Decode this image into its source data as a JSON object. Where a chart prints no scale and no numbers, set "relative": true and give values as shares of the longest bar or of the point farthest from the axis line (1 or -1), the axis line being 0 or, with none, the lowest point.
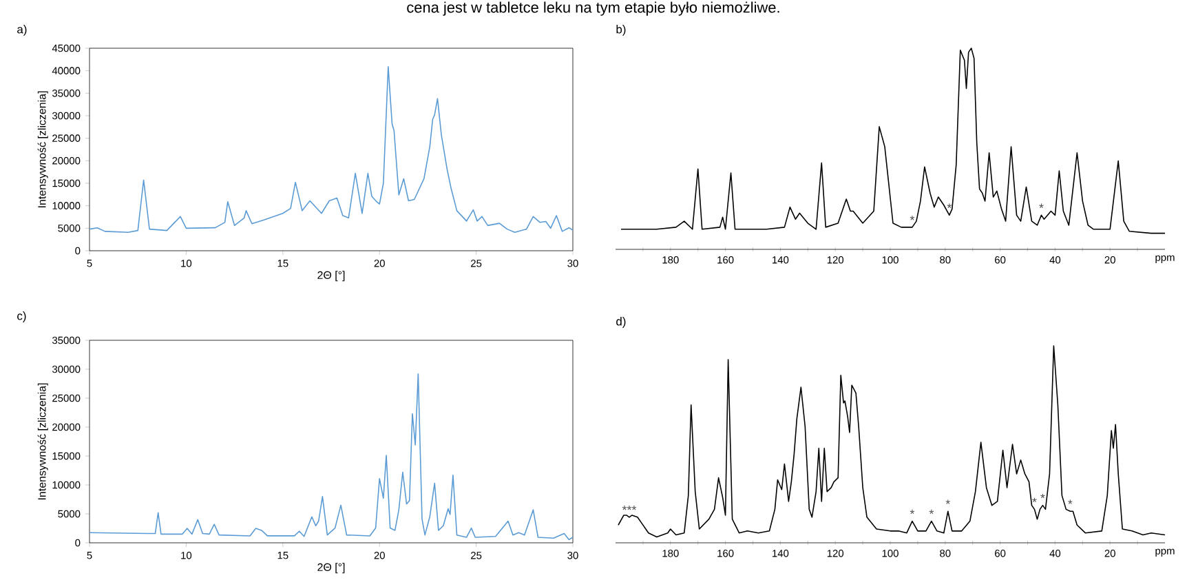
{
  "chart_data": [
    {
      "type": "line",
      "title": "a)",
      "annotations": [
        "cena jest w tabletce leku na tym etapie było niemożliwe."
      ],
      "xlabel": "2Θ [°]",
      "ylabel": "Intensywność [zliczenia]",
      "xlim": [
        5,
        30
      ],
      "ylim": [
        0,
        45000
      ],
      "xticks": [
        5,
        10,
        15,
        20,
        25,
        30
      ],
      "yticks": [
        0,
        5000,
        10000,
        15000,
        20000,
        25000,
        30000,
        35000,
        40000,
        45000
      ],
      "x": [
        5,
        5.4,
        5.8,
        7,
        7.5,
        7.8,
        8.1,
        9,
        9.7,
        10,
        11.5,
        12,
        12.15,
        12.5,
        13,
        13.1,
        13.4,
        14,
        15,
        15.4,
        15.65,
        16,
        16.4,
        17,
        17.4,
        17.8,
        18.1,
        18.4,
        18.75,
        19.1,
        19.4,
        19.6,
        19.85,
        20,
        20.2,
        20.45,
        20.65,
        20.75,
        21.0,
        21.25,
        21.5,
        21.8,
        22.3,
        22.6,
        22.75,
        22.85,
        23.0,
        23.2,
        23.5,
        23.7,
        24.0,
        24.5,
        24.85,
        25.05,
        25.3,
        25.6,
        26.2,
        26.6,
        27.0,
        27.6,
        27.95,
        28.3,
        28.6,
        28.85,
        29.15,
        29.45,
        29.8,
        30
      ],
      "series": [
        {
          "color": "#5b9bd5",
          "values": [
            4800,
            5100,
            4300,
            4100,
            4500,
            15700,
            4800,
            4500,
            7600,
            5000,
            5100,
            6300,
            10900,
            5600,
            7300,
            8900,
            6000,
            6800,
            8300,
            9400,
            15200,
            8900,
            11100,
            8300,
            11100,
            11700,
            7800,
            7300,
            17200,
            8300,
            17200,
            12100,
            10900,
            10400,
            15000,
            40900,
            28200,
            26700,
            12400,
            16000,
            11100,
            11400,
            16000,
            23100,
            29200,
            30200,
            33800,
            25700,
            18000,
            13900,
            8900,
            6600,
            9100,
            6600,
            7600,
            5600,
            6100,
            4800,
            4100,
            4800,
            7600,
            6300,
            6500,
            5000,
            7800,
            4300,
            5100,
            4600
          ]
        }
      ]
    },
    {
      "type": "line",
      "title": "b)",
      "xlabel": "ppm",
      "relative": true,
      "tick_labels": "x",
      "xlim": [
        200,
        0
      ],
      "xticks": [
        {
          "value": 190,
          "label": null
        },
        180,
        {
          "value": 170,
          "label": null
        },
        160,
        {
          "value": 150,
          "label": null
        },
        140,
        {
          "value": 130,
          "label": null
        },
        120,
        {
          "value": 110,
          "label": null
        },
        100,
        {
          "value": 90,
          "label": null
        },
        80,
        {
          "value": 70,
          "label": null
        },
        60,
        {
          "value": 50,
          "label": null
        },
        40,
        {
          "value": 30,
          "label": null
        },
        20,
        {
          "value": 10,
          "label": null
        }
      ],
      "annotations": [
        {
          "text": "*",
          "x": 92,
          "y": 0.11
        },
        {
          "text": "*",
          "x": 78.5,
          "y": 0.17
        },
        {
          "text": "*",
          "x": 45,
          "y": 0.17
        }
      ],
      "x": [
        198,
        185,
        178,
        175,
        172,
        170,
        168.5,
        162,
        161,
        160,
        158,
        156.5,
        145,
        138.5,
        136.5,
        134.5,
        133,
        130,
        127,
        125,
        123.5,
        119,
        116,
        114.5,
        113.5,
        110,
        106,
        104,
        102,
        99,
        96,
        92,
        90.5,
        89,
        87.5,
        85.5,
        84,
        82.5,
        80.5,
        78.5,
        77.5,
        76,
        74.5,
        73,
        72.3,
        71.5,
        70.5,
        69.5,
        68.5,
        67.5,
        66.5,
        65.5,
        64,
        62.5,
        61.2,
        59.5,
        58,
        56,
        54,
        52.5,
        50.5,
        48.5,
        46.5,
        45,
        44,
        41.5,
        40,
        38.5,
        37,
        35,
        32,
        30,
        28,
        26,
        23.5,
        20,
        17,
        15,
        13,
        5,
        0
      ],
      "series": [
        {
          "color": "#000000",
          "values": [
            0.1,
            0.1,
            0.11,
            0.14,
            0.1,
            0.4,
            0.1,
            0.11,
            0.16,
            0.1,
            0.38,
            0.1,
            0.1,
            0.11,
            0.21,
            0.15,
            0.18,
            0.13,
            0.1,
            0.43,
            0.11,
            0.13,
            0.25,
            0.19,
            0.19,
            0.13,
            0.19,
            0.61,
            0.51,
            0.13,
            0.11,
            0.11,
            0.14,
            0.24,
            0.41,
            0.28,
            0.21,
            0.26,
            0.22,
            0.17,
            0.2,
            0.42,
            0.99,
            0.94,
            0.8,
            0.98,
            1.0,
            0.95,
            0.53,
            0.3,
            0.28,
            0.24,
            0.48,
            0.26,
            0.29,
            0.2,
            0.14,
            0.51,
            0.17,
            0.14,
            0.31,
            0.14,
            0.12,
            0.17,
            0.15,
            0.19,
            0.17,
            0.39,
            0.19,
            0.12,
            0.48,
            0.24,
            0.12,
            0.1,
            0.1,
            0.1,
            0.44,
            0.14,
            0.09,
            0.08,
            0.08
          ]
        }
      ]
    },
    {
      "type": "line",
      "title": "c)",
      "xlabel": "2Θ [°]",
      "ylabel": "Intensywność [zliczenia]",
      "xlim": [
        5,
        30
      ],
      "ylim": [
        0,
        35000
      ],
      "xticks": [
        5,
        10,
        15,
        20,
        25,
        30
      ],
      "yticks": [
        0,
        5000,
        10000,
        15000,
        20000,
        25000,
        30000,
        35000
      ],
      "x": [
        5,
        8,
        8.4,
        8.55,
        8.7,
        9.8,
        10.05,
        10.3,
        10.6,
        10.85,
        11.2,
        11.45,
        11.7,
        13.3,
        13.6,
        13.9,
        14.2,
        15.6,
        15.85,
        16.1,
        16.5,
        16.7,
        16.85,
        17.05,
        17.3,
        17.7,
        18.0,
        18.3,
        19.5,
        19.8,
        20.0,
        20.2,
        20.35,
        20.55,
        20.8,
        21.0,
        21.2,
        21.4,
        21.55,
        21.7,
        21.85,
        22.0,
        22.2,
        22.35,
        22.6,
        22.85,
        23.05,
        23.3,
        23.55,
        23.65,
        23.8,
        24.0,
        24.5,
        24.75,
        24.95,
        26.0,
        26.65,
        26.9,
        27.2,
        27.5,
        27.95,
        28.2,
        29.0,
        29.55,
        29.8,
        30
      ],
      "series": [
        {
          "color": "#5b9bd5",
          "values": [
            1750,
            1600,
            1600,
            5200,
            1500,
            1500,
            2500,
            1500,
            4000,
            1600,
            1500,
            3200,
            1350,
            1200,
            2500,
            2150,
            1200,
            1200,
            2000,
            1100,
            4500,
            2950,
            3750,
            8000,
            1350,
            2550,
            6500,
            1350,
            1200,
            2550,
            11100,
            7700,
            15100,
            2550,
            2150,
            5700,
            12200,
            6700,
            7300,
            22300,
            16900,
            29200,
            4100,
            1350,
            4500,
            10300,
            2150,
            2950,
            5900,
            4900,
            11700,
            1350,
            950,
            2550,
            950,
            1100,
            3750,
            1350,
            1750,
            1350,
            5700,
            950,
            800,
            1600,
            550,
            950
          ]
        }
      ]
    },
    {
      "type": "line",
      "title": "d)",
      "xlabel": "ppm",
      "relative": true,
      "tick_labels": "x",
      "xlim": [
        200,
        0
      ],
      "xticks": [
        {
          "value": 190,
          "label": null
        },
        180,
        {
          "value": 170,
          "label": null
        },
        160,
        {
          "value": 150,
          "label": null
        },
        140,
        {
          "value": 130,
          "label": null
        },
        120,
        {
          "value": 110,
          "label": null
        },
        100,
        {
          "value": 90,
          "label": null
        },
        80,
        {
          "value": 70,
          "label": null
        },
        60,
        {
          "value": 50,
          "label": null
        },
        40,
        {
          "value": 30,
          "label": null
        },
        20,
        {
          "value": 10,
          "label": null
        }
      ],
      "annotations": [
        {
          "text": "***",
          "x": 195,
          "y": 0.13
        },
        {
          "text": "*",
          "x": 92,
          "y": 0.11
        },
        {
          "text": "*",
          "x": 85,
          "y": 0.11
        },
        {
          "text": "*",
          "x": 79,
          "y": 0.16
        },
        {
          "text": "*",
          "x": 47.5,
          "y": 0.17
        },
        {
          "text": "*",
          "x": 44.5,
          "y": 0.19
        },
        {
          "text": "*",
          "x": 34.5,
          "y": 0.16
        }
      ],
      "x": [
        199,
        197,
        196,
        195,
        194,
        192,
        190.5,
        188,
        185,
        181,
        180,
        178,
        175,
        173.5,
        172.5,
        171,
        169.5,
        166,
        164,
        162.5,
        161,
        160,
        159,
        157.5,
        155,
        152,
        148,
        144,
        142,
        141,
        139.5,
        138.5,
        137,
        136,
        135,
        134,
        132.5,
        131,
        129.5,
        128.5,
        127,
        126,
        125,
        124,
        123,
        121.5,
        120.5,
        119,
        118,
        117,
        116.5,
        115.5,
        114.8,
        114,
        112.5,
        111.5,
        110,
        108.5,
        105,
        100,
        97,
        94,
        92,
        90,
        87,
        85,
        83,
        80.5,
        79,
        77.5,
        74,
        71,
        69,
        67,
        65,
        63,
        61,
        59,
        57.5,
        55.5,
        54,
        52.5,
        51,
        49.5,
        48.5,
        47.5,
        46.5,
        45.5,
        44.5,
        43.5,
        42,
        40.5,
        39,
        37.5,
        36,
        34.5,
        33.5,
        32,
        29,
        23,
        21,
        19.5,
        18.8,
        18,
        17,
        15.5,
        12,
        8,
        5,
        0
      ],
      "series": [
        {
          "color": "#000000",
          "values": [
            0.09,
            0.14,
            0.14,
            0.13,
            0.14,
            0.13,
            0.1,
            0.05,
            0.03,
            0.05,
            0.07,
            0.04,
            0.05,
            0.24,
            0.7,
            0.26,
            0.07,
            0.12,
            0.17,
            0.33,
            0.23,
            0.14,
            0.93,
            0.12,
            0.05,
            0.06,
            0.05,
            0.06,
            0.17,
            0.32,
            0.27,
            0.4,
            0.21,
            0.31,
            0.45,
            0.63,
            0.79,
            0.59,
            0.17,
            0.13,
            0.26,
            0.48,
            0.21,
            0.48,
            0.26,
            0.28,
            0.31,
            0.33,
            0.85,
            0.71,
            0.72,
            0.64,
            0.56,
            0.8,
            0.76,
            0.59,
            0.28,
            0.13,
            0.07,
            0.06,
            0.06,
            0.05,
            0.11,
            0.06,
            0.06,
            0.11,
            0.06,
            0.05,
            0.16,
            0.06,
            0.06,
            0.11,
            0.26,
            0.51,
            0.28,
            0.19,
            0.21,
            0.47,
            0.28,
            0.5,
            0.35,
            0.42,
            0.35,
            0.31,
            0.19,
            0.17,
            0.12,
            0.17,
            0.19,
            0.17,
            0.35,
            1.0,
            0.7,
            0.24,
            0.17,
            0.16,
            0.16,
            0.09,
            0.05,
            0.06,
            0.24,
            0.57,
            0.48,
            0.6,
            0.35,
            0.07,
            0.06,
            0.04,
            0.05,
            0.04
          ]
        }
      ]
    }
  ]
}
